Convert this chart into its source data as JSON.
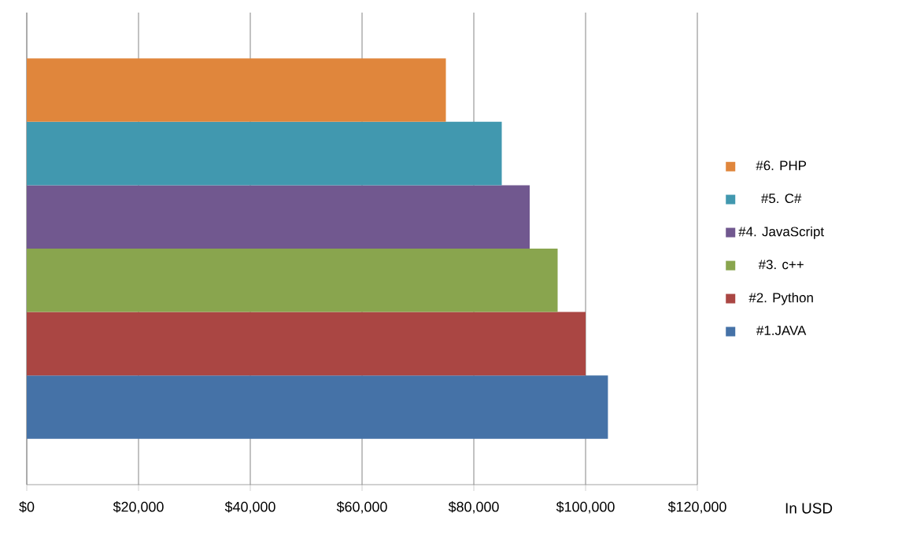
{
  "chart_data": {
    "type": "bar",
    "orientation": "horizontal",
    "xlabel": "In USD",
    "categories": [
      null
    ],
    "series": [
      {
        "name": "#1.JAVA",
        "color": "#4572a7",
        "values": [
          104000
        ]
      },
      {
        "name": "#2. Python",
        "color": "#aa4643",
        "values": [
          100000
        ]
      },
      {
        "name": "#3. c++",
        "color": "#89a54e",
        "values": [
          95000
        ]
      },
      {
        "name": "#4. JavaScript",
        "color": "#71588f",
        "values": [
          90000
        ]
      },
      {
        "name": "#5. C#",
        "color": "#4198af",
        "values": [
          85000
        ]
      },
      {
        "name": "#6. PHP",
        "color": "#e0863c",
        "values": [
          75000
        ]
      }
    ],
    "xlim": [
      0,
      120000
    ],
    "xticks": [
      {
        "value": 0,
        "label": "$0"
      },
      {
        "value": 20000,
        "label": "$20,000"
      },
      {
        "value": 40000,
        "label": "$40,000"
      },
      {
        "value": 60000,
        "label": "$60,000"
      },
      {
        "value": 80000,
        "label": "$80,000"
      },
      {
        "value": 100000,
        "label": "$100,000"
      },
      {
        "value": 120000,
        "label": "$120,000"
      }
    ],
    "grid": "x",
    "legend": "right"
  }
}
